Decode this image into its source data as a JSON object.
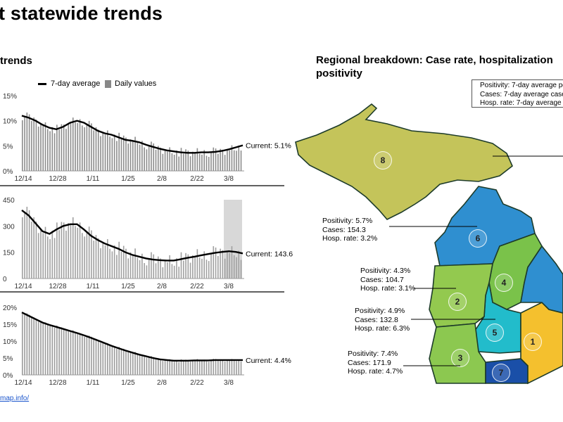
{
  "header": {
    "title": "t statewide trends"
  },
  "trends": {
    "heading": "trends"
  },
  "legend": {
    "avg": "7-day average",
    "daily": "Daily values"
  },
  "regional": {
    "heading": "Regional breakdown: Case rate, hospitalization positivity",
    "legend_lines": [
      "Positivity: 7-day average po",
      "Cases: 7-day average case",
      "Hosp. rate: 7-day average |"
    ],
    "annotations": [
      {
        "lines": [
          "Positivity: 5.7%",
          "Cases: 154.3",
          "Hosp. rate: 3.2%"
        ]
      },
      {
        "lines": [
          "Positivity: 4.3%",
          "Cases: 104.7",
          "Hosp. rate: 3.1%"
        ]
      },
      {
        "lines": [
          "Positivity: 4.9%",
          "Cases: 132.8",
          "Hosp. rate: 6.3%"
        ]
      },
      {
        "lines": [
          "Positivity: 7.4%",
          "Cases: 171.9",
          "Hosp. rate: 4.7%"
        ]
      }
    ],
    "regions": [
      "8",
      "6",
      "4",
      "2",
      "5",
      "1",
      "3",
      "7"
    ],
    "colors": {
      "region8": "#c4c45a",
      "region6": "#2f8fd0",
      "region4": "#7ac24a",
      "region2": "#93c94f",
      "region5": "#22bccb",
      "region1": "#f4c02e",
      "region3": "#8cc850",
      "region7": "#1a4fa8"
    }
  },
  "source": {
    "text": "map.info/"
  },
  "chart_data": [
    {
      "type": "bar",
      "name": "positivity",
      "yticks": [
        "15%",
        "10%",
        "5%",
        "0%"
      ],
      "ylim": [
        0,
        15
      ],
      "xticks": [
        "12/14",
        "12/28",
        "1/11",
        "1/25",
        "2/8",
        "2/22",
        "3/8"
      ],
      "current_label": "Current: 5.1%",
      "avg": [
        11.0,
        10.6,
        10.0,
        9.2,
        8.6,
        8.3,
        8.8,
        9.6,
        10.0,
        9.6,
        8.8,
        8.0,
        7.5,
        7.2,
        6.7,
        6.2,
        6.0,
        5.7,
        5.2,
        4.8,
        4.4,
        4.1,
        3.9,
        3.7,
        3.6,
        3.6,
        3.7,
        3.7,
        3.8,
        4.0,
        4.3,
        4.7,
        5.1
      ],
      "color_avg": "#000000",
      "color_bars": "#8c8c8c"
    },
    {
      "type": "bar",
      "name": "cases",
      "yticks": [
        "450",
        "300",
        "150",
        "0"
      ],
      "ylim": [
        0,
        450
      ],
      "xticks": [
        "12/14",
        "12/28",
        "1/11",
        "1/25",
        "2/8",
        "2/22",
        "3/8"
      ],
      "current_label": "Current: 143.6",
      "avg": [
        390,
        360,
        315,
        270,
        255,
        280,
        300,
        310,
        310,
        280,
        245,
        220,
        200,
        185,
        170,
        150,
        135,
        125,
        115,
        108,
        105,
        103,
        103,
        110,
        118,
        125,
        133,
        140,
        147,
        152,
        156,
        152,
        143.6
      ],
      "color_avg": "#000000",
      "color_bars": "#a0a0a0"
    },
    {
      "type": "bar",
      "name": "hospitalization",
      "yticks": [
        "20%",
        "15%",
        "10%",
        "5%",
        "0%"
      ],
      "ylim": [
        0,
        20
      ],
      "xticks": [
        "12/14",
        "12/28",
        "1/11",
        "1/25",
        "2/8",
        "2/22",
        "3/8"
      ],
      "current_label": "Current: 4.4%",
      "avg": [
        18.5,
        17.5,
        16.5,
        15.5,
        14.8,
        14.2,
        13.6,
        13.0,
        12.4,
        11.7,
        11.0,
        10.2,
        9.4,
        8.6,
        7.9,
        7.2,
        6.6,
        6.0,
        5.5,
        5.0,
        4.6,
        4.4,
        4.2,
        4.2,
        4.2,
        4.3,
        4.3,
        4.3,
        4.4,
        4.4,
        4.4,
        4.4,
        4.4
      ],
      "color_avg": "#000000",
      "color_bars": "#9a9a9a"
    }
  ]
}
